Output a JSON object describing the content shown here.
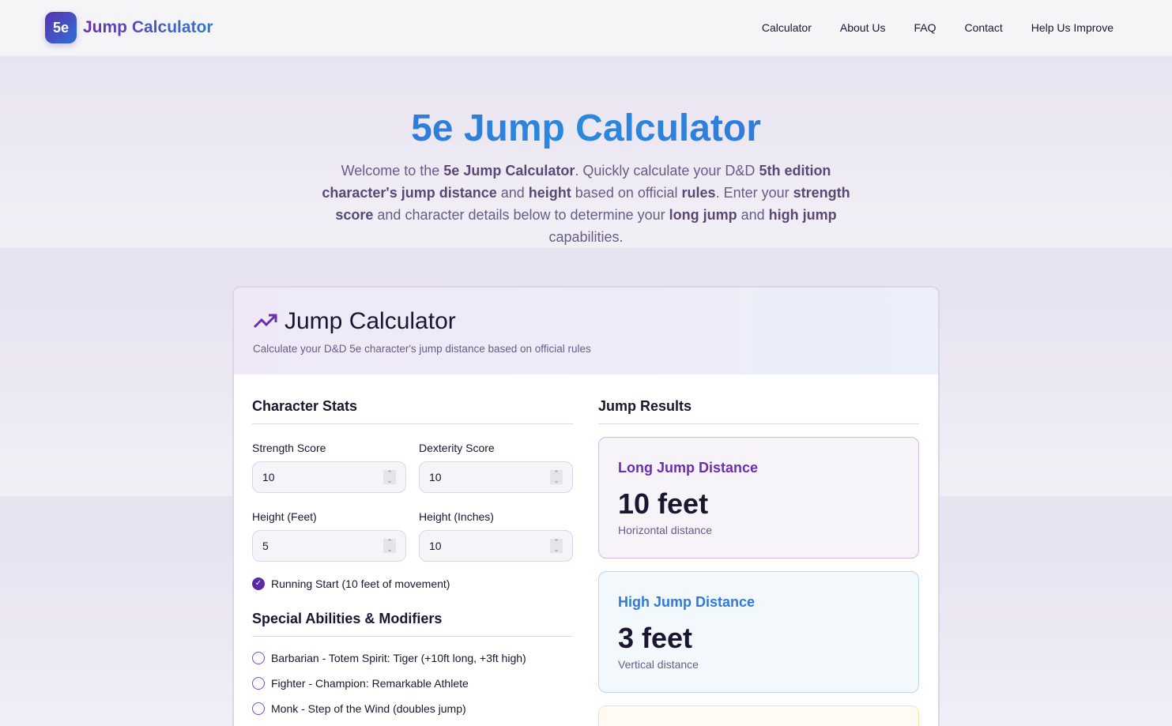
{
  "nav": {
    "logo_badge": "5e",
    "logo_text": "Jump Calculator",
    "links": [
      "Calculator",
      "About Us",
      "FAQ",
      "Contact",
      "Help Us Improve"
    ]
  },
  "hero": {
    "title": "5e Jump Calculator",
    "intro": [
      {
        "t": "Welcome to the ",
        "b": false
      },
      {
        "t": "5e Jump Calculator",
        "b": true
      },
      {
        "t": ". Quickly calculate your D&D ",
        "b": false
      },
      {
        "t": "5th edition character's jump distance",
        "b": true
      },
      {
        "t": " and ",
        "b": false
      },
      {
        "t": "height",
        "b": true
      },
      {
        "t": " based on official ",
        "b": false
      },
      {
        "t": "rules",
        "b": true
      },
      {
        "t": ". Enter your ",
        "b": false
      },
      {
        "t": "strength score",
        "b": true
      },
      {
        "t": " and character details below to determine your ",
        "b": false
      },
      {
        "t": "long jump",
        "b": true
      },
      {
        "t": " and ",
        "b": false
      },
      {
        "t": "high jump",
        "b": true
      },
      {
        "t": " capabilities.",
        "b": false
      }
    ]
  },
  "card": {
    "title": "Jump Calculator",
    "subtitle": "Calculate your D&D 5e character's jump distance based on official rules",
    "stats": {
      "heading": "Character Stats",
      "fields": [
        {
          "label": "Strength Score",
          "value": "10"
        },
        {
          "label": "Dexterity Score",
          "value": "10"
        },
        {
          "label": "Height (Feet)",
          "value": "5"
        },
        {
          "label": "Height (Inches)",
          "value": "10"
        }
      ],
      "running_start": {
        "label": "Running Start (10 feet of movement)",
        "checked": true
      }
    },
    "abilities": {
      "heading": "Special Abilities & Modifiers",
      "options": [
        "Barbarian - Totem Spirit: Tiger (+10ft long, +3ft high)",
        "Fighter - Champion: Remarkable Athlete",
        "Monk - Step of the Wind (doubles jump)"
      ]
    },
    "results": {
      "heading": "Jump Results",
      "items": [
        {
          "title": "Long Jump Distance",
          "value": "10 feet",
          "desc": "Horizontal distance"
        },
        {
          "title": "High Jump Distance",
          "value": "3 feet",
          "desc": "Vertical distance"
        }
      ]
    }
  },
  "colors": {
    "purple": "#5b2aa6",
    "blue": "#2f7ad8"
  }
}
